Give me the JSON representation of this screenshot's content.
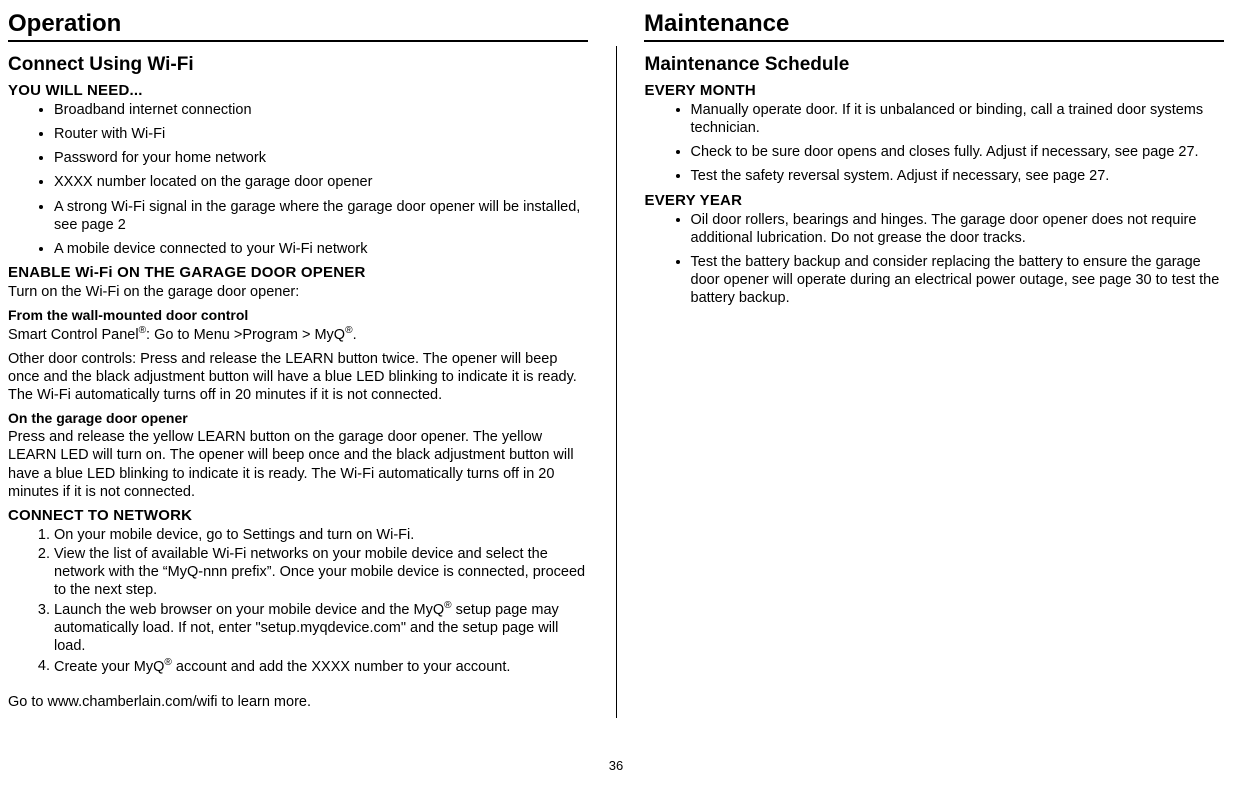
{
  "left": {
    "main_heading": "Operation",
    "section_heading": "Connect Using Wi-Fi",
    "need_heading": "YOU WILL NEED...",
    "need_items": [
      "Broadband internet connection",
      "Router with Wi-Fi",
      "Password for your home network",
      "XXXX number located on the garage door opener",
      "A strong Wi-Fi signal in the garage where the garage door opener will be installed, see page 2",
      "A mobile device connected to your Wi-Fi network"
    ],
    "enable_heading": "ENABLE Wi-Fi ON THE GARAGE DOOR OPENER",
    "enable_intro": "Turn on the Wi-Fi on the garage door opener:",
    "wall_heading": "From the wall-mounted door control",
    "wall_p1_a": "Smart Control Panel",
    "wall_p1_b": ": Go to Menu >Program > MyQ",
    "wall_p1_c": ".",
    "wall_p2": "Other door controls: Press and release the LEARN button twice. The opener will beep once and the black adjustment button will have a blue LED blinking to indicate it is ready. The Wi-Fi automatically turns off in 20 minutes if it is not connected.",
    "opener_heading": "On the garage door opener",
    "opener_p": "Press and release the yellow LEARN button on the garage door opener. The yellow LEARN LED will turn on. The opener will beep once and the black adjustment button will have a blue LED blinking to indicate it is ready. The Wi-Fi automatically turns off in 20 minutes if it is not connected.",
    "connect_heading": "CONNECT TO NETWORK",
    "connect_steps": [
      "On your mobile device, go to Settings and turn on Wi-Fi.",
      "View the list of available Wi-Fi networks on your mobile device and select the network with the “MyQ-nnn prefix”. Once your mobile device is connected, proceed to the next step.",
      "Launch the web browser on your mobile device and the MyQ® setup page may automatically load. If not, enter \"setup.myqdevice.com\" and the setup page will load.",
      "Create your MyQ® account and add the XXXX number to your account."
    ],
    "learn_more": "Go to www.chamberlain.com/wifi to learn more."
  },
  "right": {
    "main_heading": "Maintenance",
    "section_heading": "Maintenance Schedule",
    "month_heading": "EVERY MONTH",
    "month_items": [
      "Manually operate door. If it is unbalanced or binding, call a trained door systems technician.",
      "Check to be sure door opens and closes fully. Adjust if necessary, see page 27.",
      "Test the safety reversal system. Adjust if necessary, see page 27."
    ],
    "year_heading": "EVERY YEAR",
    "year_items": [
      "Oil door rollers, bearings and hinges. The garage door opener does not require additional lubrication. Do not grease the door tracks.",
      "Test the battery backup and consider replacing the battery to ensure the garage door opener will operate during an electrical power outage, see page 30 to test the battery backup."
    ]
  },
  "page_number": "36"
}
